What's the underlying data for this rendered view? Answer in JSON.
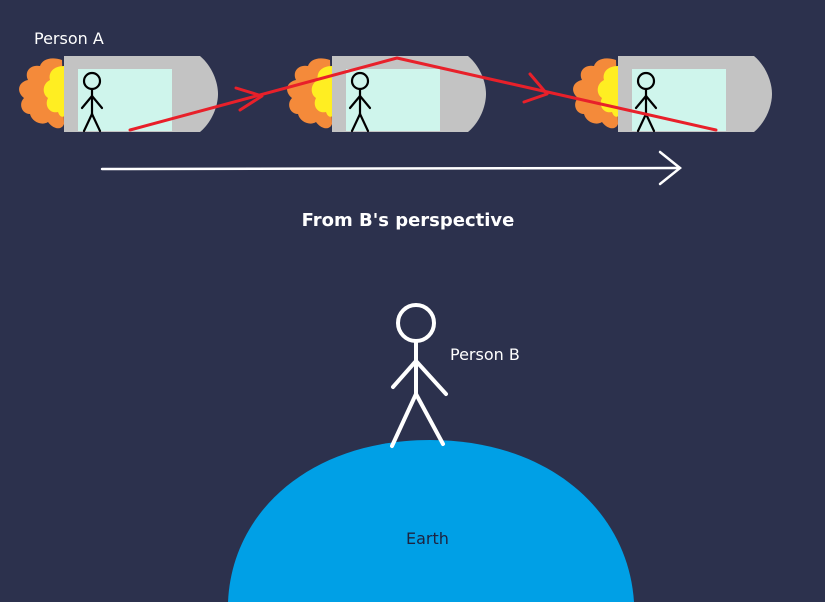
{
  "labels": {
    "person_a": "Person A",
    "person_b": "Person B",
    "title": "From B's perspective",
    "earth": "Earth"
  },
  "colors": {
    "background": "#2c314d",
    "ship_body": "#c3c3c3",
    "window": "#cff5ec",
    "flame_outer": "#f48a3a",
    "flame_inner": "#ffee22",
    "light_path": "#e8202a",
    "earth": "#00a0e6",
    "figure": "#ffffff"
  },
  "icons": [
    "rocket-ship-icon",
    "stick-figure-icon",
    "flame-icon",
    "arrow-right-icon"
  ]
}
